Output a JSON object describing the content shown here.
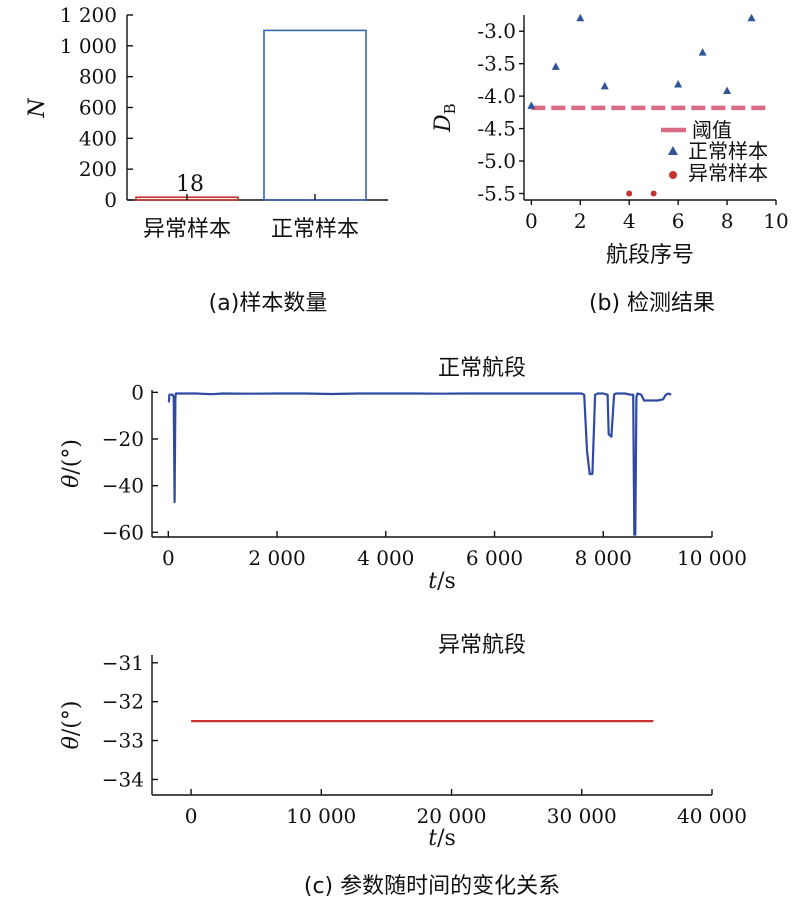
{
  "chart_data": [
    {
      "type": "bar",
      "panel": "a",
      "caption": "(a)样本数量",
      "ylabel": "N",
      "ylim": [
        0,
        1200
      ],
      "yticks": [
        0,
        200,
        400,
        600,
        800,
        "1 000",
        "1 200"
      ],
      "ytick_values": [
        0,
        200,
        400,
        600,
        800,
        1000,
        1200
      ],
      "categories": [
        "异常样本",
        "正常样本"
      ],
      "values": [
        18,
        1100
      ],
      "bar_colors": [
        "#c8322f",
        "#3a64b0"
      ],
      "data_labels": [
        "18",
        ""
      ]
    },
    {
      "type": "scatter",
      "panel": "b",
      "caption": "(b) 检测结果",
      "xlabel": "航段序号",
      "ylabel_main": "D",
      "ylabel_sub": "B",
      "xlim": [
        -0.3,
        10
      ],
      "ylim": [
        -5.6,
        -2.75
      ],
      "xticks": [
        0,
        2,
        4,
        6,
        8,
        10
      ],
      "yticks": [
        "-3.0",
        "-3.5",
        "-4.0",
        "-4.5",
        "-5.0",
        "-5.5"
      ],
      "ytick_values": [
        -3.0,
        -3.5,
        -4.0,
        -4.5,
        -5.0,
        -5.5
      ],
      "threshold": {
        "name": "阈值",
        "value": -4.18,
        "color": "#d96b85"
      },
      "series": [
        {
          "name": "正常样本",
          "marker": "triangle",
          "color": "#2f5597",
          "x": [
            0,
            1,
            2,
            3,
            6,
            7,
            8,
            9
          ],
          "y": [
            -4.15,
            -3.55,
            -2.8,
            -3.85,
            -3.82,
            -3.33,
            -3.92,
            -2.8
          ]
        },
        {
          "name": "异常样本",
          "marker": "circle",
          "color": "#c8322f",
          "x": [
            4,
            5
          ],
          "y": [
            -5.5,
            -5.5
          ]
        }
      ],
      "legend_position": "bottom-right"
    },
    {
      "type": "line",
      "panel": "c-top",
      "title": "正常航段",
      "xlabel_var": "t",
      "xlabel_unit": "/s",
      "ylabel_var": "θ",
      "ylabel_unit": "/(°)",
      "xlim": [
        -300,
        10000
      ],
      "ylim": [
        -62,
        1
      ],
      "xticks": [
        "0",
        "2 000",
        "4 000",
        "6 000",
        "8 000",
        "10 000"
      ],
      "xtick_values": [
        0,
        2000,
        4000,
        6000,
        8000,
        10000
      ],
      "yticks": [
        "0",
        "−20",
        "−40",
        "−60"
      ],
      "ytick_values": [
        0,
        -20,
        -40,
        -60
      ],
      "color": "#2f4aa0",
      "x": [
        0,
        10,
        20,
        60,
        80,
        100,
        115,
        130,
        140,
        160,
        200,
        500,
        800,
        1000,
        1500,
        2000,
        2500,
        3000,
        3500,
        4000,
        4500,
        5000,
        5500,
        6000,
        6500,
        7000,
        7500,
        7600,
        7650,
        7700,
        7750,
        7800,
        7850,
        7900,
        8000,
        8080,
        8100,
        8150,
        8200,
        8230,
        8300,
        8400,
        8500,
        8550,
        8570,
        8590,
        8610,
        8630,
        8700,
        8750,
        8800,
        9000,
        9100,
        9150,
        9200,
        9250
      ],
      "y": [
        -4,
        -4,
        -1,
        -1,
        -1,
        -2,
        -47,
        -2,
        -0.5,
        -0.5,
        -0.5,
        -0.5,
        -0.8,
        -0.5,
        -0.6,
        -0.5,
        -0.5,
        -0.7,
        -0.5,
        -0.5,
        -0.5,
        -0.6,
        -0.5,
        -0.5,
        -0.5,
        -0.5,
        -0.5,
        -0.5,
        -1,
        -25,
        -35,
        -35,
        -1,
        -0.5,
        -0.5,
        -1,
        -18,
        -19,
        -1,
        -0.5,
        -0.5,
        -0.5,
        -1,
        -1,
        -61,
        -61,
        -2,
        -0.5,
        -1,
        -3.5,
        -3.5,
        -3.5,
        -3,
        -1,
        -0.5,
        -1
      ]
    },
    {
      "type": "line",
      "panel": "c-bottom",
      "title": "异常航段",
      "xlabel_var": "t",
      "xlabel_unit": "/s",
      "ylabel_var": "θ",
      "ylabel_unit": "/(°)",
      "xlim": [
        -3000,
        40000
      ],
      "ylim": [
        -34.4,
        -30.8
      ],
      "xticks": [
        "0",
        "10 000",
        "20 000",
        "30 000",
        "40 000"
      ],
      "xtick_values": [
        0,
        10000,
        20000,
        30000,
        40000
      ],
      "yticks": [
        "−31",
        "−32",
        "−33",
        "−34"
      ],
      "ytick_values": [
        -31,
        -32,
        -33,
        -34
      ],
      "color": "#c8322f",
      "x": [
        0,
        35500
      ],
      "y": [
        -32.5,
        -32.5
      ]
    }
  ],
  "caption_c": "(c) 参数随时间的变化关系"
}
